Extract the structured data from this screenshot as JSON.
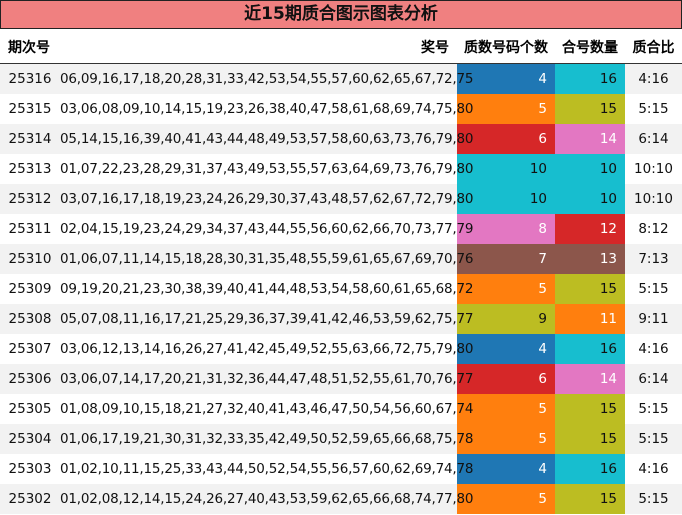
{
  "title": "近15期质合图示图表分析",
  "headers": {
    "period": "期次号",
    "numbers": "奖号",
    "prime": "质数号码个数",
    "composite": "合号数量",
    "ratio": "质合比"
  },
  "colors": {
    "title_bg": "#f08080",
    "v4": "#1f77b4",
    "v5": "#ff7f0e",
    "v6": "#d62728",
    "v7": "#8c564b",
    "v8": "#e377c2",
    "v9": "#bcbd22",
    "v10": "#17becf",
    "v11": "#ff7f0e",
    "v12": "#d62728",
    "v13": "#8c564b",
    "v14": "#e377c2",
    "v15": "#bcbd22",
    "v16": "#17becf"
  },
  "rows": [
    {
      "period": "25316",
      "numbers": "06,09,16,17,18,20,28,31,33,42,53,54,55,57,60,62,65,67,72,75",
      "prime": "4",
      "composite": "16",
      "ratio": "4:16"
    },
    {
      "period": "25315",
      "numbers": "03,06,08,09,10,14,15,19,23,26,38,40,47,58,61,68,69,74,75,80",
      "prime": "5",
      "composite": "15",
      "ratio": "5:15"
    },
    {
      "period": "25314",
      "numbers": "05,14,15,16,39,40,41,43,44,48,49,53,57,58,60,63,73,76,79,80",
      "prime": "6",
      "composite": "14",
      "ratio": "6:14"
    },
    {
      "period": "25313",
      "numbers": "01,07,22,23,28,29,31,37,43,49,53,55,57,63,64,69,73,76,79,80",
      "prime": "10",
      "composite": "10",
      "ratio": "10:10"
    },
    {
      "period": "25312",
      "numbers": "03,07,16,17,18,19,23,24,26,29,30,37,43,48,57,62,67,72,79,80",
      "prime": "10",
      "composite": "10",
      "ratio": "10:10"
    },
    {
      "period": "25311",
      "numbers": "02,04,15,19,23,24,29,34,37,43,44,55,56,60,62,66,70,73,77,79",
      "prime": "8",
      "composite": "12",
      "ratio": "8:12"
    },
    {
      "period": "25310",
      "numbers": "01,06,07,11,14,15,18,28,30,31,35,48,55,59,61,65,67,69,70,76",
      "prime": "7",
      "composite": "13",
      "ratio": "7:13"
    },
    {
      "period": "25309",
      "numbers": "09,19,20,21,23,30,38,39,40,41,44,48,53,54,58,60,61,65,68,72",
      "prime": "5",
      "composite": "15",
      "ratio": "5:15"
    },
    {
      "period": "25308",
      "numbers": "05,07,08,11,16,17,21,25,29,36,37,39,41,42,46,53,59,62,75,77",
      "prime": "9",
      "composite": "11",
      "ratio": "9:11"
    },
    {
      "period": "25307",
      "numbers": "03,06,12,13,14,16,26,27,41,42,45,49,52,55,63,66,72,75,79,80",
      "prime": "4",
      "composite": "16",
      "ratio": "4:16"
    },
    {
      "period": "25306",
      "numbers": "03,06,07,14,17,20,21,31,32,36,44,47,48,51,52,55,61,70,76,77",
      "prime": "6",
      "composite": "14",
      "ratio": "6:14"
    },
    {
      "period": "25305",
      "numbers": "01,08,09,10,15,18,21,27,32,40,41,43,46,47,50,54,56,60,67,74",
      "prime": "5",
      "composite": "15",
      "ratio": "5:15"
    },
    {
      "period": "25304",
      "numbers": "01,06,17,19,21,30,31,32,33,35,42,49,50,52,59,65,66,68,75,78",
      "prime": "5",
      "composite": "15",
      "ratio": "5:15"
    },
    {
      "period": "25303",
      "numbers": "01,02,10,11,15,25,33,43,44,50,52,54,55,56,57,60,62,69,74,78",
      "prime": "4",
      "composite": "16",
      "ratio": "4:16"
    },
    {
      "period": "25302",
      "numbers": "01,02,08,12,14,15,24,26,27,40,43,53,59,62,65,66,68,74,77,80",
      "prime": "5",
      "composite": "15",
      "ratio": "5:15"
    }
  ]
}
